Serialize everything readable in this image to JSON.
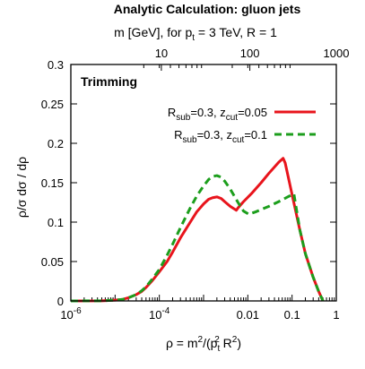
{
  "chart_data": {
    "type": "line",
    "title": "Analytic Calculation: gluon jets",
    "top_axis_label": {
      "prefix": "m [GeV], for p",
      "sub": "t",
      "suffix": " = 3 TeV, R = 1"
    },
    "top_ticks": [
      {
        "label": "10",
        "rho": 0.0001111
      },
      {
        "label": "100",
        "rho": 0.01111
      },
      {
        "label": "1000",
        "rho": 1.0
      }
    ],
    "xlabel": {
      "prefix": "ρ = m",
      "sup1": "2",
      "mid": "/(p",
      "sub": "t",
      "sup2": "2",
      "suffix": " R",
      "sup3": "2",
      "end": ")"
    },
    "ylabel": "ρ/σ dσ / dρ",
    "x_scale": "log",
    "xlim": [
      1e-06,
      1.0
    ],
    "ylim": [
      0,
      0.3
    ],
    "x_ticks": [
      {
        "value": 1e-06,
        "base": "10",
        "exp": "-6"
      },
      {
        "value": 0.0001,
        "base": "10",
        "exp": "-4"
      },
      {
        "value": 0.01,
        "text": "0.01"
      },
      {
        "value": 0.1,
        "text": "0.1"
      },
      {
        "value": 1.0,
        "text": "1"
      }
    ],
    "y_ticks": [
      {
        "value": 0,
        "text": "0"
      },
      {
        "value": 0.05,
        "text": "0.05"
      },
      {
        "value": 0.1,
        "text": "0.1"
      },
      {
        "value": 0.15,
        "text": "0.15"
      },
      {
        "value": 0.2,
        "text": "0.2"
      },
      {
        "value": 0.25,
        "text": "0.25"
      },
      {
        "value": 0.3,
        "text": "0.3"
      }
    ],
    "annotation": "Trimming",
    "legend_position": "top-right",
    "series": [
      {
        "legend": {
          "base": "R",
          "sub": "sub",
          "mid": "=0.3, z",
          "sub2": "cut",
          "end": "=0.05"
        },
        "color": "#e8141c",
        "style": "solid",
        "x": [
          1e-06,
          5e-06,
          1e-05,
          1.5e-05,
          2e-05,
          3e-05,
          4e-05,
          5e-05,
          7e-05,
          0.0001,
          0.00015,
          0.0002,
          0.0003,
          0.0005,
          0.0007,
          0.001,
          0.0013,
          0.0016,
          0.002,
          0.0025,
          0.003,
          0.004,
          0.0055,
          0.006,
          0.008,
          0.012,
          0.02,
          0.03,
          0.05,
          0.0628,
          0.07,
          0.1,
          0.15,
          0.2,
          0.3,
          0.4,
          0.5
        ],
        "y": [
          0,
          0.0002,
          0.001,
          0.002,
          0.004,
          0.008,
          0.012,
          0.017,
          0.026,
          0.037,
          0.05,
          0.062,
          0.08,
          0.1,
          0.113,
          0.123,
          0.129,
          0.131,
          0.132,
          0.13,
          0.126,
          0.12,
          0.115,
          0.118,
          0.126,
          0.136,
          0.15,
          0.162,
          0.176,
          0.181,
          0.175,
          0.135,
          0.09,
          0.06,
          0.03,
          0.012,
          0
        ]
      },
      {
        "legend": {
          "base": "R",
          "sub": "sub",
          "mid": "=0.3, z",
          "sub2": "cut",
          "end": "=0.1"
        },
        "color": "#1c9e1c",
        "style": "dashed",
        "x": [
          1e-06,
          5e-06,
          1e-05,
          1.5e-05,
          2e-05,
          3e-05,
          4e-05,
          5e-05,
          7e-05,
          0.0001,
          0.00015,
          0.0002,
          0.0003,
          0.0005,
          0.0007,
          0.001,
          0.0013,
          0.0016,
          0.002,
          0.0025,
          0.003,
          0.004,
          0.006,
          0.008,
          0.0105,
          0.015,
          0.02,
          0.03,
          0.05,
          0.08,
          0.11,
          0.15,
          0.2,
          0.3,
          0.4,
          0.5
        ],
        "y": [
          0,
          0.0002,
          0.001,
          0.002,
          0.004,
          0.008,
          0.013,
          0.018,
          0.028,
          0.04,
          0.058,
          0.072,
          0.093,
          0.118,
          0.133,
          0.146,
          0.154,
          0.158,
          0.159,
          0.157,
          0.152,
          0.142,
          0.125,
          0.114,
          0.11,
          0.113,
          0.116,
          0.12,
          0.126,
          0.132,
          0.136,
          0.09,
          0.06,
          0.03,
          0.012,
          0
        ]
      }
    ]
  }
}
